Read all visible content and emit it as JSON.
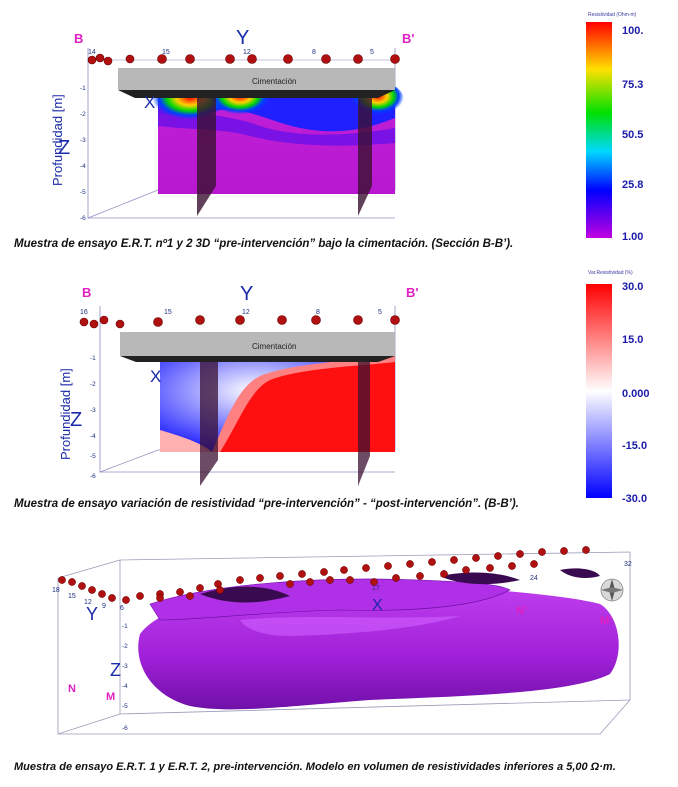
{
  "figure1": {
    "section_start": "B",
    "section_end": "B'",
    "axis_y": "Y",
    "axis_x": "X",
    "axis_z": "Z",
    "depth_label": "Profundidad [m]",
    "foundation_label": "Cimentación",
    "electrode_numbers": [
      "14",
      "15",
      "12",
      "8",
      "5"
    ],
    "depth_ticks": [
      "-1",
      "-2",
      "-3",
      "-4",
      "-5",
      "-6"
    ],
    "colorbar": {
      "title": "Resistividad (Ohm-m)",
      "ticks": [
        "100.",
        "75.3",
        "50.5",
        "25.8",
        "1.00"
      ],
      "colors": [
        "#ff0000",
        "#ffe000",
        "#00e000",
        "#00d8ff",
        "#0000ff",
        "#c000e0"
      ]
    },
    "caption": "Muestra de ensayo E.R.T. nº1 y 2 3D “pre-intervención” bajo la cimentación. (Sección B-B’)."
  },
  "figure2": {
    "section_start": "B",
    "section_end": "B'",
    "axis_y": "Y",
    "axis_x": "X",
    "axis_z": "Z",
    "depth_label": "Profundidad [m]",
    "foundation_label": "Cimentación",
    "electrode_numbers": [
      "16",
      "15",
      "12",
      "8",
      "5"
    ],
    "depth_ticks": [
      "-1",
      "-2",
      "-3",
      "-4",
      "-5",
      "-6"
    ],
    "colorbar": {
      "title": "Var.Resistividad (%)",
      "ticks": [
        "30.0",
        "15.0",
        "0.000",
        "-15.0",
        "-30.0"
      ],
      "colors": [
        "#ff0000",
        "#ff8080",
        "#ffffff",
        "#8080ff",
        "#0000ff"
      ]
    },
    "caption": "Muestra de ensayo variación de resistividad “pre-intervención” - “post-intervención”. (B-B’)."
  },
  "figure3": {
    "label_n_left": "N",
    "label_m_left": "M",
    "label_n_right": "N’",
    "label_m_right": "M’",
    "axis_y": "Y",
    "axis_x": "X",
    "axis_z": "Z",
    "electrode_numbers": [
      "18",
      "15",
      "12",
      "9",
      "6",
      "17",
      "24",
      "32"
    ],
    "depth_ticks": [
      "-1",
      "-2",
      "-3",
      "-4",
      "-5",
      "-6"
    ],
    "caption": "Muestra de ensayo E.R.T. 1 y E.R.T. 2, pre-intervención. Modelo en volumen de resistividades inferiores a 5,00 Ω·m."
  }
}
